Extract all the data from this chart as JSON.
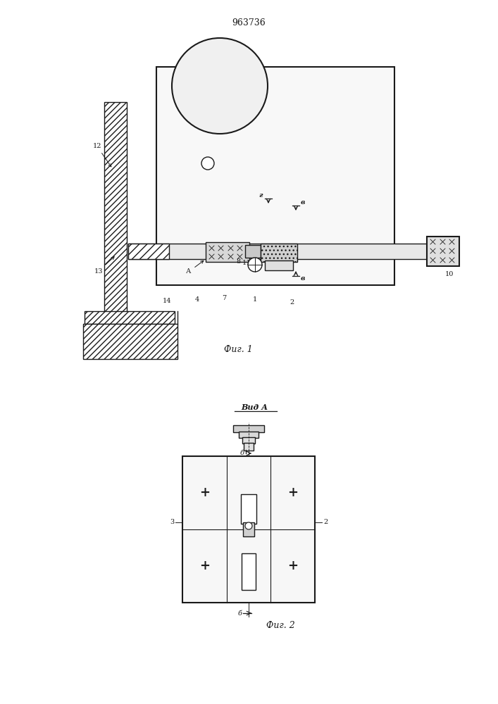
{
  "title": "963736",
  "fig1_label": "Фиг. 1",
  "fig2_label": "Фиг. 2",
  "fig2_view_label": "Вид А",
  "bg_color": "#ffffff",
  "line_color": "#1a1a1a"
}
